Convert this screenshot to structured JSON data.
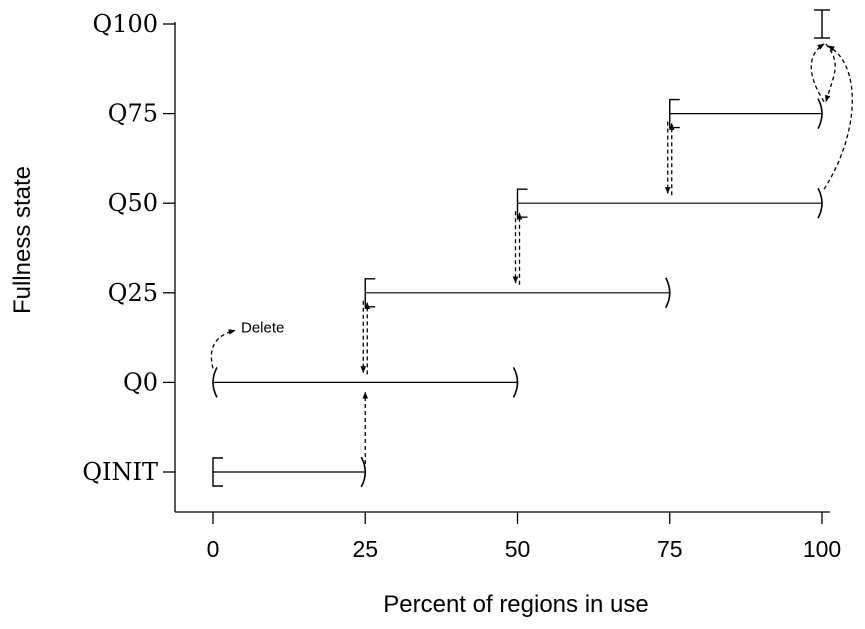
{
  "chart_data": {
    "type": "diagram",
    "xlabel": "Percent of regions in use",
    "ylabel": "Fullness state",
    "x_ticks": [
      0,
      25,
      50,
      75,
      100
    ],
    "xlim": [
      0,
      100
    ],
    "states": [
      {
        "name": "QINIT",
        "range": [
          0,
          25
        ],
        "left": "inclusive",
        "right": "exclusive"
      },
      {
        "name": "Q0",
        "range": [
          0,
          50
        ],
        "left": "exclusive",
        "right": "exclusive"
      },
      {
        "name": "Q25",
        "range": [
          25,
          75
        ],
        "left": "inclusive",
        "right": "exclusive"
      },
      {
        "name": "Q50",
        "range": [
          50,
          100
        ],
        "left": "inclusive",
        "right": "exclusive"
      },
      {
        "name": "Q75",
        "range": [
          75,
          100
        ],
        "left": "inclusive",
        "right": "exclusive"
      },
      {
        "name": "Q100",
        "range": [
          100,
          100
        ],
        "left": "inclusive",
        "right": "inclusive"
      }
    ],
    "transitions": [
      {
        "from": "QINIT",
        "to": "Q0",
        "x": 25
      },
      {
        "from": "Q0",
        "to": "Q25",
        "x": 25
      },
      {
        "from": "Q25",
        "to": "Q0",
        "x": 25
      },
      {
        "from": "Q25",
        "to": "Q50",
        "x": 50
      },
      {
        "from": "Q50",
        "to": "Q25",
        "x": 50
      },
      {
        "from": "Q50",
        "to": "Q75",
        "x": 75
      },
      {
        "from": "Q75",
        "to": "Q50",
        "x": 75
      },
      {
        "from": "Q50",
        "to": "Q100",
        "x": 100
      },
      {
        "from": "Q75",
        "to": "Q100",
        "x": 100
      },
      {
        "from": "Q100",
        "to": "Q75",
        "x": 100
      }
    ],
    "annotations": [
      {
        "text": "Delete",
        "state": "Q0",
        "x": 0
      }
    ]
  }
}
